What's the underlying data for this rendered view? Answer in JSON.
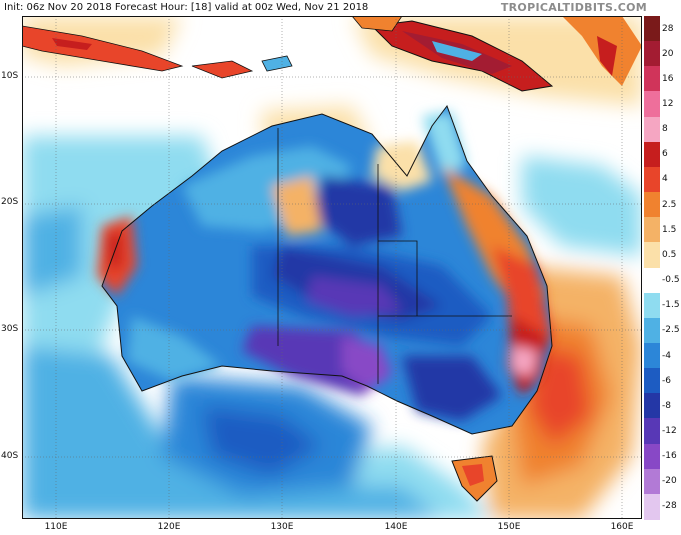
{
  "header": {
    "title": "Init: 06z Nov 20 2018   Forecast Hour: [18]   valid at 00z Wed, Nov 21 2018",
    "brand": "TROPICALTIDBITS.COM"
  },
  "map": {
    "lat_labels": [
      "10S",
      "20S",
      "30S",
      "40S"
    ],
    "lon_labels": [
      "110E",
      "120E",
      "130E",
      "140E",
      "150E",
      "160E"
    ]
  },
  "legend": {
    "levels": [
      "28",
      "20",
      "16",
      "12",
      "8",
      "6",
      "4",
      "2.5",
      "1.5",
      "0.5",
      "-0.5",
      "-1.5",
      "-2.5",
      "-4",
      "-6",
      "-8",
      "-12",
      "-16",
      "-20",
      "-28"
    ],
    "colors": [
      "#7a1a1a",
      "#a31c32",
      "#d0345a",
      "#ee6f9b",
      "#f5a6c2",
      "#c61e1e",
      "#e8452a",
      "#f0822f",
      "#f4b266",
      "#fbe0a9",
      "#ffffff",
      "#8fdcf0",
      "#4fb1e4",
      "#2c86d8",
      "#1d5cc2",
      "#2437a6",
      "#5838b6",
      "#8848c6",
      "#b27ad6",
      "#e3c7ef"
    ]
  }
}
